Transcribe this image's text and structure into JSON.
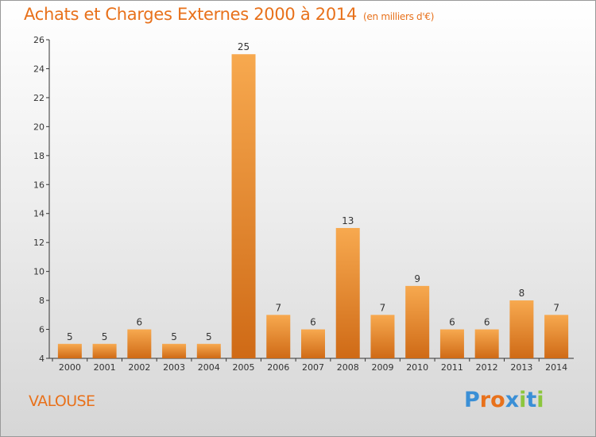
{
  "header": {
    "title": "Achats et Charges Externes 2000 à 2014",
    "subtitle": "(en milliers d'€)"
  },
  "commune": "VALOUSE",
  "logo": {
    "text": "Proxiti"
  },
  "colors": {
    "accent": "#e8711b",
    "bar_light": "#f7a94f",
    "bar_dark": "#cf6a16"
  },
  "chart_data": {
    "type": "bar",
    "title": "Achats et Charges Externes 2000 à 2014",
    "subtitle": "(en milliers d'€)",
    "xlabel": "",
    "ylabel": "",
    "categories": [
      "2000",
      "2001",
      "2002",
      "2003",
      "2004",
      "2005",
      "2006",
      "2007",
      "2008",
      "2009",
      "2010",
      "2011",
      "2012",
      "2013",
      "2014"
    ],
    "values": [
      5,
      5,
      6,
      5,
      5,
      25,
      7,
      6,
      13,
      7,
      9,
      6,
      6,
      8,
      7
    ],
    "ylim": [
      4,
      26
    ],
    "yticks": [
      4,
      6,
      8,
      10,
      12,
      14,
      16,
      18,
      20,
      22,
      24,
      26
    ],
    "grid": false,
    "legend": "none"
  }
}
